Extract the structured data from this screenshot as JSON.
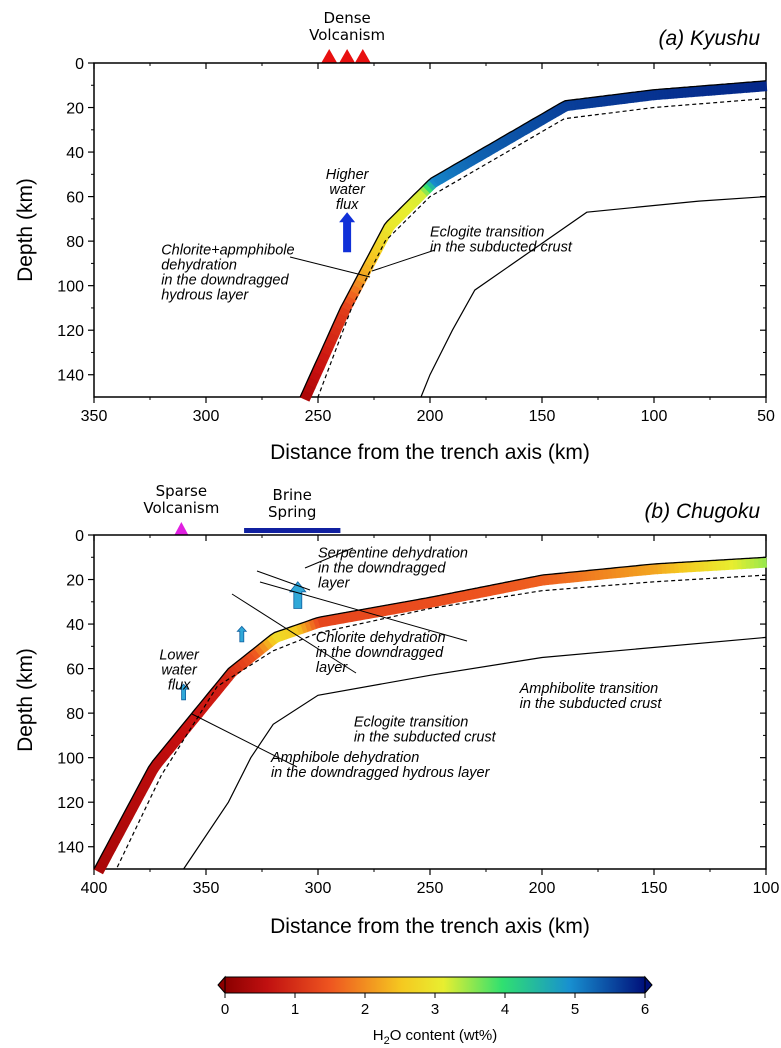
{
  "chart_data": [
    {
      "type": "line",
      "panel": "a",
      "title": "(a) Kyushu",
      "xlabel": "Distance  from  the trench axis  (km)",
      "ylabel": "Depth (km)",
      "xlim": [
        350,
        50
      ],
      "ylim": [
        0,
        150
      ],
      "x_ticks": [
        350,
        300,
        250,
        200,
        150,
        100,
        50
      ],
      "y_ticks": [
        0,
        20,
        40,
        60,
        80,
        100,
        120,
        140
      ],
      "slab_top": {
        "x": [
          50,
          100,
          140,
          200,
          220,
          240,
          258
        ],
        "y": [
          8,
          12,
          17,
          52,
          72,
          110,
          150
        ]
      },
      "water_band": {
        "x": [
          50,
          100,
          140,
          180,
          200,
          205,
          220,
          232,
          240,
          258
        ],
        "h2o": [
          5.8,
          5.7,
          5.6,
          5.3,
          5.0,
          3.2,
          3.0,
          2.2,
          1.2,
          0.3
        ]
      },
      "dashed_line": {
        "x": [
          50,
          100,
          140,
          200,
          220,
          235,
          250
        ],
        "y": [
          16,
          20,
          25,
          60,
          80,
          110,
          150
        ]
      },
      "solid_curve": {
        "x": [
          50,
          80,
          100,
          130,
          180,
          190,
          200,
          204
        ],
        "y": [
          60,
          62,
          64,
          67,
          102,
          120,
          140,
          150
        ]
      },
      "top_label": "Dense\nVolcanism",
      "volcanoes_x": [
        245,
        237,
        230
      ],
      "flux_arrow": {
        "x": 237,
        "y_base": 85,
        "y_tip": 67,
        "size": "large"
      },
      "annotations": [
        {
          "text": "Higher\nwater\nflux",
          "x": 237,
          "y": 52
        },
        {
          "text": "Chlorite+apmphibole\ndehydration\nin the downdragged\nhydrous layer",
          "x": 320,
          "y": 86
        },
        {
          "text": "Eclogite transition\nin the subducted crust",
          "x": 200,
          "y": 78
        }
      ]
    },
    {
      "type": "line",
      "panel": "b",
      "title": "(b) Chugoku",
      "xlabel": "Distance  from  the trench axis  (km)",
      "ylabel": "Depth (km)",
      "xlim": [
        400,
        100
      ],
      "ylim": [
        0,
        150
      ],
      "x_ticks": [
        400,
        350,
        300,
        250,
        200,
        150,
        100
      ],
      "y_ticks": [
        0,
        20,
        40,
        60,
        80,
        100,
        120,
        140
      ],
      "slab_top": {
        "x": [
          100,
          150,
          200,
          250,
          300,
          320,
          340,
          375,
          400
        ],
        "y": [
          10,
          13,
          18,
          28,
          37,
          44,
          60,
          103,
          150
        ]
      },
      "water_band": {
        "x": [
          100,
          150,
          200,
          250,
          300,
          310,
          320,
          330,
          345,
          370,
          400
        ],
        "h2o": [
          3.5,
          2.2,
          1.6,
          1.4,
          1.3,
          2.5,
          2.8,
          1.5,
          0.8,
          0.5,
          0.3
        ]
      },
      "dashed_line": {
        "x": [
          100,
          150,
          200,
          250,
          300,
          320,
          345,
          370,
          390
        ],
        "y": [
          18,
          21,
          25,
          33,
          44,
          52,
          68,
          108,
          150
        ]
      },
      "solid_curve": {
        "x": [
          100,
          200,
          250,
          300,
          320,
          330,
          340,
          360
        ],
        "y": [
          46,
          55,
          63,
          72,
          85,
          100,
          120,
          150
        ]
      },
      "top_labels": {
        "sparse": "Sparse\nVolcanism",
        "brine": "Brine\nSpring"
      },
      "volcano_x": 361,
      "brine_spring_range": [
        333,
        290
      ],
      "flux_arrows": [
        {
          "x": 309,
          "y_base": 33,
          "y_tip": 21,
          "size": "large"
        },
        {
          "x": 334,
          "y_base": 48,
          "y_tip": 41,
          "size": "small"
        },
        {
          "x": 360,
          "y_base": 74,
          "y_tip": 67,
          "size": "small"
        }
      ],
      "annotations": [
        {
          "text": "Serpentine dehydration\nin the downdragged\nlayer",
          "x": 300,
          "y": 10
        },
        {
          "text": "Lower\nwater\nflux",
          "x": 362,
          "y": 56
        },
        {
          "text": "Chlorite dehydration\nin the downdragged\nlayer",
          "x": 301,
          "y": 48
        },
        {
          "text": "Amphibolite transition\nin the subducted crust",
          "x": 210,
          "y": 71
        },
        {
          "text": "Eclogite transition\nin the subducted crust",
          "x": 284,
          "y": 86
        },
        {
          "text": "Amphibole dehydration\nin the downdragged hydrous layer",
          "x": 321,
          "y": 102
        }
      ]
    }
  ],
  "colorbar": {
    "label_main": "H",
    "label_sub": "2",
    "label_rest": "O content (wt%)",
    "ticks": [
      0,
      1,
      2,
      3,
      4,
      5,
      6
    ],
    "range": [
      0,
      6
    ],
    "stops": [
      "#8b0000",
      "#d31010",
      "#f07020",
      "#f5e820",
      "#40e070",
      "#1890d0",
      "#00107a"
    ]
  }
}
